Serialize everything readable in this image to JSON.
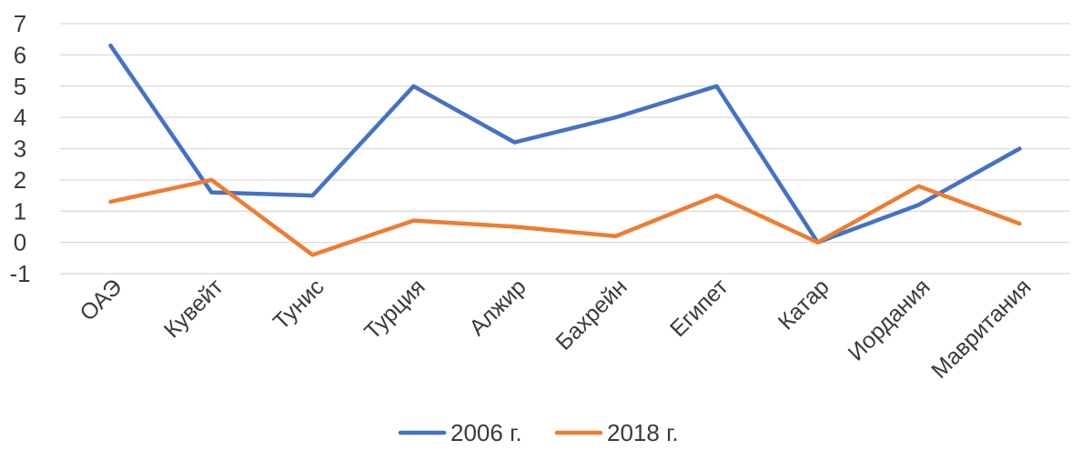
{
  "chart_data": {
    "type": "line",
    "title": "",
    "xlabel": "",
    "ylabel": "",
    "categories": [
      "ОАЭ",
      "Кувейт",
      "Тунис",
      "Турция",
      "Алжир",
      "Бахрейн",
      "Египет",
      "Катар",
      "Иордания",
      "Мавритания"
    ],
    "ylim": [
      -1,
      7
    ],
    "yticks": [
      -1,
      0,
      1,
      2,
      3,
      4,
      5,
      6,
      7
    ],
    "grid": true,
    "legend_position": "bottom",
    "series": [
      {
        "name": "2006 г.",
        "color": "#4472C4",
        "values": [
          6.3,
          1.6,
          1.5,
          5.0,
          3.2,
          4.0,
          5.0,
          0.0,
          1.2,
          3.0
        ]
      },
      {
        "name": "2018 г.",
        "color": "#ED7D31",
        "values": [
          1.3,
          2.0,
          -0.4,
          0.7,
          0.5,
          0.2,
          1.5,
          0.0,
          1.8,
          0.6
        ]
      }
    ]
  }
}
